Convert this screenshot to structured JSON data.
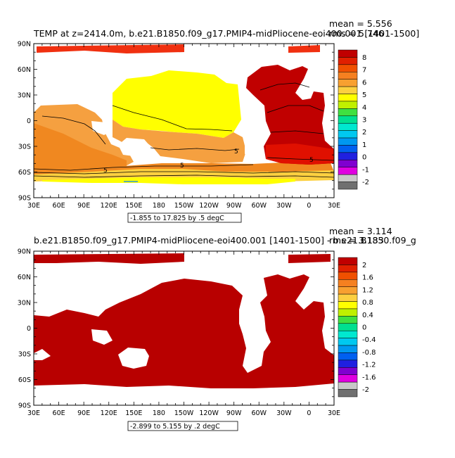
{
  "panel1": {
    "title": "TEMP at z=2414.0m, b.e21.B1850.f09_g17.PMIP4-midPliocene-eoi400.001 [1401-1500]",
    "mean_label": "mean = 5.556",
    "rms_label": "rms = 5.746",
    "range_label": "-1.855 to 17.825 by .5 degC",
    "contour_labels": [
      "5",
      "5",
      "5",
      "5"
    ],
    "colorbar": {
      "labels": [
        "8",
        "7",
        "6",
        "5",
        "4",
        "3",
        "2",
        "1",
        "0",
        "-1",
        "-2"
      ],
      "colors": [
        "#c00000",
        "#e02000",
        "#f05000",
        "#f58020",
        "#f8a030",
        "#fcd040",
        "#ffff00",
        "#c0f000",
        "#40e040",
        "#00e090",
        "#00e8d0",
        "#00c8f0",
        "#0098f0",
        "#0060f0",
        "#2020e0",
        "#8000d0",
        "#e000e0",
        "#c8c8c8",
        "#707070"
      ]
    }
  },
  "panel2": {
    "title": "b.e21.B1850.f09_g17.PMIP4-midPliocene-eoi400.001 [1401-1500] - b.e21.B1850.f09_g",
    "mean_label": "mean = 3.114",
    "rms_label": "rms = 3.133",
    "range_label": "-2.899 to 5.155 by .2 degC",
    "colorbar": {
      "labels": [
        "2",
        "1.6",
        "1.2",
        "0.8",
        "0.4",
        "0",
        "-0.4",
        "-0.8",
        "-1.2",
        "-1.6",
        "-2"
      ],
      "colors": [
        "#c00000",
        "#e02000",
        "#f05000",
        "#f58020",
        "#f8a030",
        "#fcd040",
        "#ffff00",
        "#c0f000",
        "#40e040",
        "#00e090",
        "#00e8d0",
        "#00c8f0",
        "#0098f0",
        "#0060f0",
        "#2020e0",
        "#8000d0",
        "#e000e0",
        "#c8c8c8",
        "#707070"
      ]
    }
  },
  "axes": {
    "lat_labels": [
      "90N",
      "60N",
      "30N",
      "0",
      "30S",
      "60S",
      "90S"
    ],
    "lon_labels": [
      "30E",
      "60E",
      "90E",
      "120E",
      "150E",
      "180",
      "150W",
      "120W",
      "90W",
      "60W",
      "30W",
      "0",
      "30E"
    ]
  }
}
